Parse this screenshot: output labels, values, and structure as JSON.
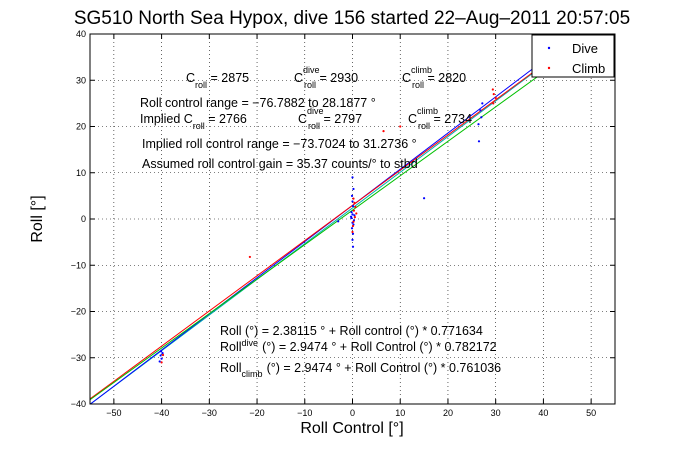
{
  "chart_data": {
    "type": "scatter",
    "title": "SG510 North Sea Hypox, dive 156 started 22–Aug–2011 20:57:05",
    "xlabel": "Roll Control [°]",
    "ylabel": "Roll [°]",
    "xlim": [
      -55,
      55
    ],
    "ylim": [
      -40,
      40
    ],
    "grid": true,
    "xticks": [
      "−50",
      "−40",
      "−30",
      "−20",
      "−10",
      "0",
      "10",
      "20",
      "30",
      "40",
      "50"
    ],
    "xtick_values": [
      -50,
      -40,
      -30,
      -20,
      -10,
      0,
      10,
      20,
      30,
      40,
      50
    ],
    "yticks": [
      "−40",
      "−30",
      "−20",
      "−10",
      "0",
      "10",
      "20",
      "30",
      "40"
    ],
    "ytick_values": [
      -40,
      -30,
      -20,
      -10,
      0,
      10,
      20,
      30,
      40
    ],
    "legend": {
      "position": "top-right",
      "entries": [
        {
          "label": "Dive",
          "color": "#0000ff"
        },
        {
          "label": "Climb",
          "color": "#ff0000"
        }
      ]
    },
    "series": [
      {
        "name": "Dive",
        "color": "#0000ff",
        "points": [
          [
            -40.2,
            -29.5
          ],
          [
            -40.0,
            -30.2
          ],
          [
            -39.8,
            -29.0
          ],
          [
            -40.4,
            -30.8
          ],
          [
            -40.1,
            -28.6
          ],
          [
            -3.0,
            -0.5
          ],
          [
            -0.3,
            0.5
          ],
          [
            -0.2,
            1.5
          ],
          [
            0.1,
            2.8
          ],
          [
            0.0,
            3.8
          ],
          [
            -0.1,
            5.0
          ],
          [
            0.2,
            6.5
          ],
          [
            0.0,
            -0.8
          ],
          [
            -0.1,
            -2.0
          ],
          [
            0.1,
            -3.2
          ],
          [
            0.0,
            -4.5
          ],
          [
            0.2,
            -1.2
          ],
          [
            -0.2,
            0.2
          ],
          [
            0.0,
            1.0
          ],
          [
            0.3,
            -0.3
          ],
          [
            0.4,
            0.8
          ],
          [
            0.0,
            9.0
          ],
          [
            0.1,
            -6.0
          ],
          [
            15.0,
            4.5
          ],
          [
            26.5,
            16.8
          ],
          [
            27.0,
            22.0
          ],
          [
            26.8,
            23.5
          ],
          [
            27.2,
            25.0
          ],
          [
            26.4,
            20.5
          ]
        ]
      },
      {
        "name": "Climb",
        "color": "#ff0000",
        "points": [
          [
            -21.5,
            -8.2
          ],
          [
            -40.0,
            -31.0
          ],
          [
            -39.7,
            -29.4
          ],
          [
            0.3,
            1.8
          ],
          [
            0.5,
            0.4
          ],
          [
            0.2,
            -0.6
          ],
          [
            0.6,
            2.6
          ],
          [
            0.1,
            -1.5
          ],
          [
            0.4,
            3.5
          ],
          [
            0.2,
            4.4
          ],
          [
            0.0,
            -2.8
          ],
          [
            0.8,
            1.2
          ],
          [
            6.5,
            19.0
          ],
          [
            10.0,
            20.0
          ],
          [
            29.5,
            25.0
          ],
          [
            29.6,
            27.0
          ],
          [
            29.4,
            28.0
          ],
          [
            30.0,
            26.2
          ]
        ]
      }
    ],
    "fit_lines": [
      {
        "color": "#00b0b0",
        "intercept": 2.38115,
        "slope": 0.771634
      },
      {
        "color": "#0000ff",
        "intercept": 2.9474,
        "slope": 0.782172
      },
      {
        "color": "#ff0000",
        "intercept": 2.9474,
        "slope": 0.761036
      },
      {
        "color": "#00c000",
        "intercept": 1.9,
        "slope": 0.745
      }
    ]
  },
  "annotations": {
    "c_line": {
      "c1_main": "C",
      "c1_sub": "roll",
      "c1_val": " = 2875",
      "c2_main": "C",
      "c2_sub": "roll",
      "c2_sup": "dive",
      "c2_val": " = 2930",
      "c3_main": "C",
      "c3_sub": "roll",
      "c3_sup": "climb",
      "c3_val": " = 2820"
    },
    "range_line": "Roll control range = −76.7882 to 28.1877 °",
    "implied_line": {
      "lead": "Implied C",
      "c1_sub": "roll",
      "c1_val": " = 2766",
      "c2_main": "C",
      "c2_sub": "roll",
      "c2_sup": "dive",
      "c2_val": " = 2797",
      "c3_main": "C",
      "c3_sub": "roll",
      "c3_sup": "climb",
      "c3_val": " = 2734"
    },
    "implied_range_line": "Implied roll control range = −73.7024 to 31.2736 °",
    "gain_line": "Assumed roll control gain = 35.37 counts/° to stbd",
    "fit_eq1": "Roll (°) = 2.38115 ° + Roll control (°) * 0.771634",
    "fit_eq2": {
      "lead": "Roll",
      "sub": "dive",
      "rest": "(°) = 2.9474 ° + Roll Control (°) * 0.782172"
    },
    "fit_eq3": {
      "lead": "Roll",
      "sub": "climb",
      "rest": "(°) = 2.9474 ° + Roll Control (°) * 0.761036"
    }
  }
}
